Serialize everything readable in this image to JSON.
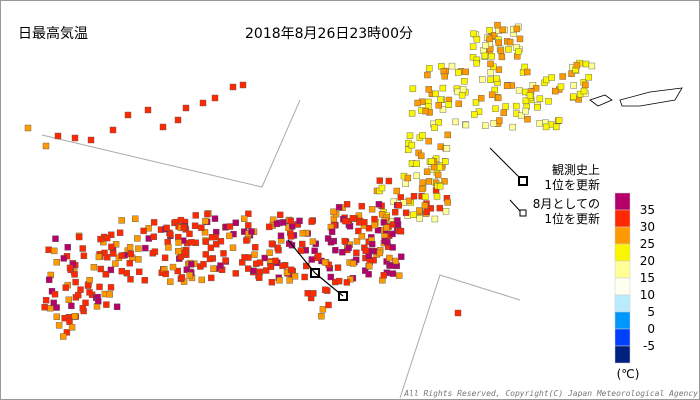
{
  "header": {
    "title": "日最高気温",
    "timestamp": "2018年8月26日23時00分"
  },
  "annotations": {
    "record_all_time": "観測史上\n1位を更新",
    "record_august": "8月としての\n1位を更新"
  },
  "legend": {
    "unit": "(℃)",
    "colors": [
      "#b40068",
      "#ff2800",
      "#ff9900",
      "#faf500",
      "#ffff96",
      "#fffff0",
      "#b9ebff",
      "#0096ff",
      "#0041ff",
      "#002080"
    ],
    "labels": [
      35,
      30,
      25,
      20,
      15,
      10,
      5,
      0,
      -5
    ]
  },
  "footer": {
    "copyright": "All Rights Reserved, Copyright(C) Japan Meteorological Agency"
  }
}
